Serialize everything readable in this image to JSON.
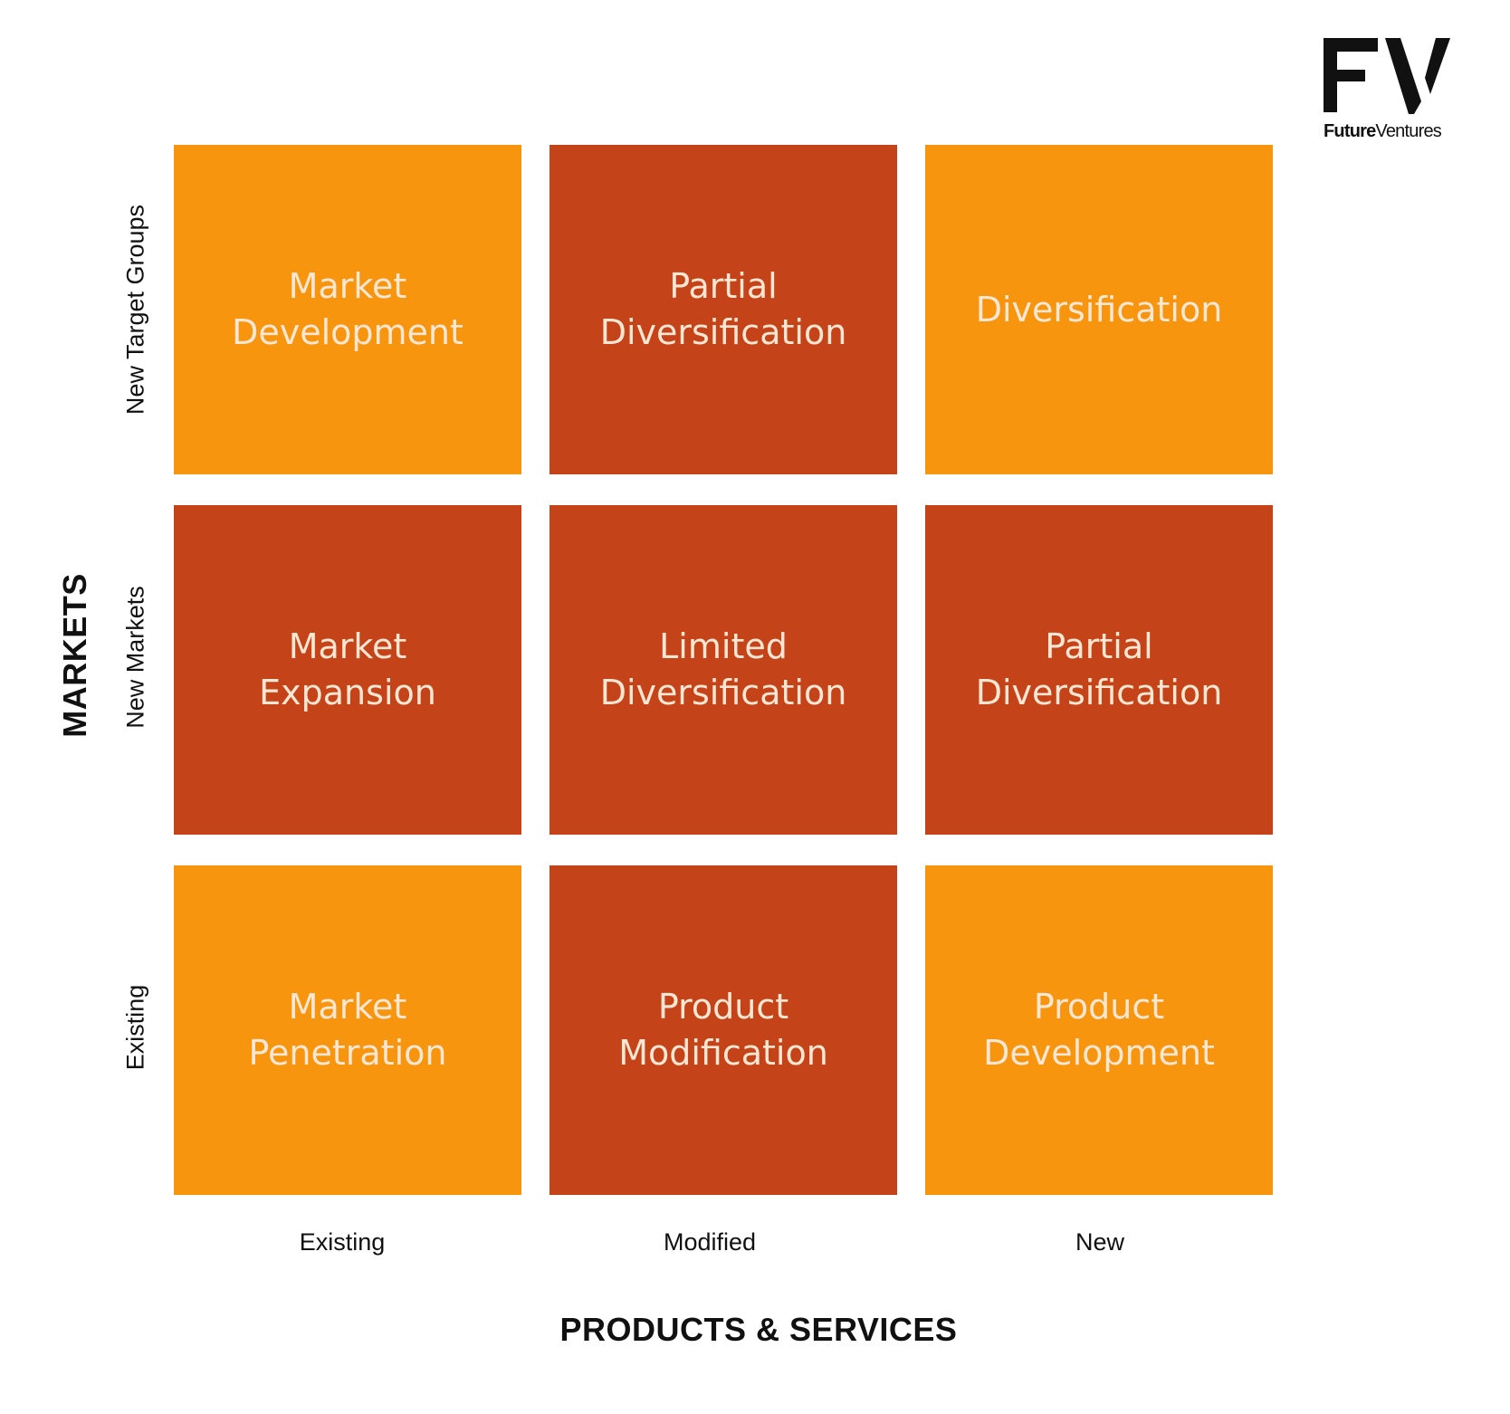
{
  "logo": {
    "mark": "FV",
    "wordmark_bold": "Future",
    "wordmark_regular": "Ventures"
  },
  "colors": {
    "orange": "#f7950f",
    "rust": "#c44318",
    "cell_text": "#fbe7d3"
  },
  "axes": {
    "y_title": "MARKETS",
    "x_title": "PRODUCTS & SERVICES",
    "rows": [
      "New Target Groups",
      "New Markets",
      "Existing"
    ],
    "cols": [
      "Existing",
      "Modified",
      "New"
    ]
  },
  "matrix": [
    [
      {
        "label": "Market\nDevelopment",
        "color": "#f7950f"
      },
      {
        "label": "Partial\nDiversification",
        "color": "#c44318"
      },
      {
        "label": "Diversification",
        "color": "#f7950f"
      }
    ],
    [
      {
        "label": "Market\nExpansion",
        "color": "#c44318"
      },
      {
        "label": "Limited\nDiversification",
        "color": "#c44318"
      },
      {
        "label": "Partial\nDiversification",
        "color": "#c44318"
      }
    ],
    [
      {
        "label": "Market\nPenetration",
        "color": "#f7950f"
      },
      {
        "label": "Product\nModification",
        "color": "#c44318"
      },
      {
        "label": "Product\nDevelopment",
        "color": "#f7950f"
      }
    ]
  ]
}
